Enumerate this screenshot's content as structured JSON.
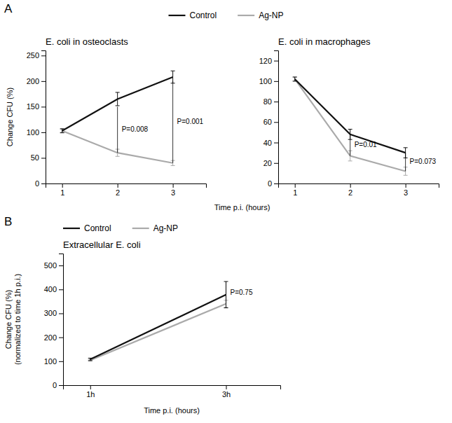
{
  "chart_data": [
    {
      "type": "line",
      "panel_label": "A",
      "title": "E. coli in osteoclasts",
      "ylabel": "Change CFU (%)",
      "xlabel": "Time p.i. (hours)",
      "x": [
        1,
        2,
        3
      ],
      "series": [
        {
          "name": "Control",
          "color": "#111111",
          "values": [
            103,
            165,
            208
          ],
          "errors": [
            4,
            13,
            12
          ]
        },
        {
          "name": "Ag-NP",
          "color": "#aaaaaa",
          "values": [
            103,
            60,
            40
          ],
          "errors": [
            3,
            7,
            5
          ]
        }
      ],
      "xlim": [
        0.7,
        3.6
      ],
      "xticks": [
        1,
        2,
        3
      ],
      "ylim": [
        0,
        260
      ],
      "yticks": [
        0,
        50,
        100,
        150,
        200,
        250
      ],
      "grid": false,
      "legend": "top",
      "annotations": [
        {
          "text": "P=0.008",
          "x": 2,
          "y": [
            60,
            150
          ]
        },
        {
          "text": "P=0.001",
          "x": 3,
          "y": [
            40,
            200
          ]
        }
      ]
    },
    {
      "type": "line",
      "title": "E. coli in macrophages",
      "x": [
        1,
        2,
        3
      ],
      "series": [
        {
          "name": "Control",
          "color": "#111111",
          "values": [
            102,
            48,
            30
          ],
          "errors": [
            2,
            5,
            5
          ]
        },
        {
          "name": "Ag-NP",
          "color": "#aaaaaa",
          "values": [
            102,
            27,
            12
          ],
          "errors": [
            2,
            5,
            4
          ]
        }
      ],
      "xlim": [
        0.7,
        3.6
      ],
      "xticks": [
        1,
        2,
        3
      ],
      "ylim": [
        0,
        130
      ],
      "yticks": [
        0,
        20,
        40,
        60,
        80,
        100,
        120
      ],
      "grid": false,
      "annotations": [
        {
          "text": "P=0.01",
          "x": 2,
          "y": [
            27,
            48
          ]
        },
        {
          "text": "P=0.073",
          "x": 3,
          "y": [
            12,
            30
          ]
        }
      ]
    },
    {
      "type": "line",
      "panel_label": "B",
      "title": "Extracellular E. coli",
      "ylabel": [
        "Change CFU (%)",
        "(normalized to time 1h p.i.)"
      ],
      "xlabel": "Time p.i. (hours)",
      "x": [
        1,
        3
      ],
      "series": [
        {
          "name": "Control",
          "color": "#111111",
          "values": [
            108,
            378
          ],
          "errors": [
            5,
            55
          ]
        },
        {
          "name": "Ag-NP",
          "color": "#aaaaaa",
          "values": [
            104,
            340
          ],
          "errors": [
            4,
            15
          ]
        }
      ],
      "xlim": [
        0.6,
        3.8
      ],
      "xticks": [
        {
          "value": 1,
          "label": "1h"
        },
        {
          "value": 3,
          "label": "3h"
        }
      ],
      "ylim": [
        0,
        550
      ],
      "yticks": [
        0,
        100,
        200,
        300,
        400,
        500
      ],
      "grid": false,
      "legend": "top-left",
      "annotations": [
        {
          "text": "P=0.75",
          "x": 3,
          "y": [
            340,
            433
          ]
        }
      ]
    }
  ]
}
